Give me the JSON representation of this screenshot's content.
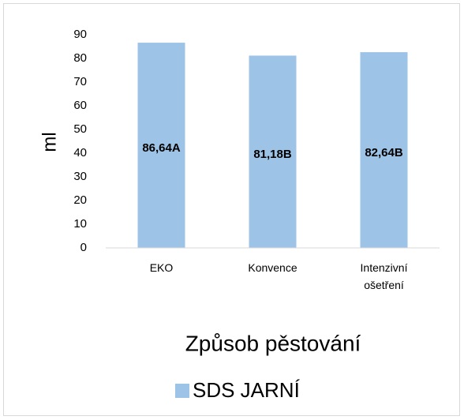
{
  "chart_data": {
    "type": "bar",
    "categories": [
      "EKO",
      "Konvence",
      "Intenzivní ošetření"
    ],
    "series": [
      {
        "name": "SDS JARNÍ",
        "color": "#9dc3e6",
        "values": [
          86.64,
          81.18,
          82.64
        ],
        "value_labels": [
          "86,64A",
          "81,18B",
          "82,64B"
        ]
      }
    ],
    "xlabel": "Způsob pěstování",
    "ylabel": "ml",
    "ylim": [
      0,
      90
    ],
    "yticks": [
      0,
      10,
      20,
      30,
      40,
      50,
      60,
      70,
      80,
      90
    ],
    "grid": false,
    "legend": "bottom"
  }
}
